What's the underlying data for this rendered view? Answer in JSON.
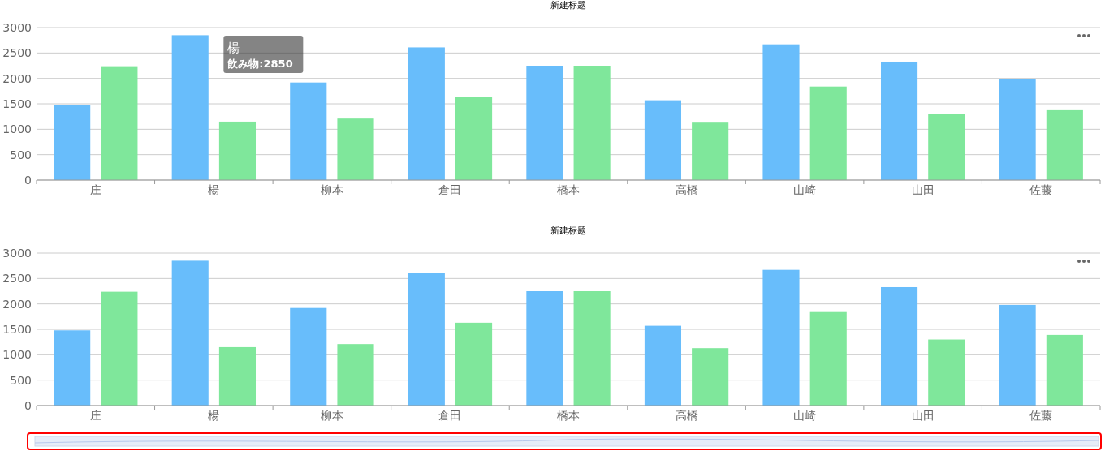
{
  "chart_data": [
    {
      "type": "bar",
      "title": "新建标题",
      "categories": [
        "庄",
        "楊",
        "柳本",
        "倉田",
        "橋本",
        "高橋",
        "山崎",
        "山田",
        "佐藤"
      ],
      "series": [
        {
          "color": "#68bdfb",
          "values": [
            1480,
            2850,
            1920,
            2610,
            2250,
            1570,
            2670,
            2330,
            1980
          ]
        },
        {
          "color": "#7fe79b",
          "values": [
            2240,
            1150,
            1210,
            1630,
            2250,
            1130,
            1840,
            1300,
            1390
          ]
        }
      ],
      "ylim": [
        0,
        3000
      ],
      "yticks": [
        0,
        500,
        1000,
        1500,
        2000,
        2500,
        3000
      ],
      "grid": "y",
      "annotations": [
        "楊",
        "飲み物:2850"
      ]
    },
    {
      "type": "bar",
      "title": "新建标题",
      "categories": [
        "庄",
        "楊",
        "柳本",
        "倉田",
        "橋本",
        "高橋",
        "山崎",
        "山田",
        "佐藤"
      ],
      "series": [
        {
          "color": "#68bdfb",
          "values": [
            1480,
            2850,
            1920,
            2610,
            2250,
            1570,
            2670,
            2330,
            1980
          ]
        },
        {
          "color": "#7fe79b",
          "values": [
            2240,
            1150,
            1210,
            1630,
            2250,
            1130,
            1840,
            1300,
            1390
          ]
        }
      ],
      "ylim": [
        0,
        3000
      ],
      "yticks": [
        0,
        500,
        1000,
        1500,
        2000,
        2500,
        3000
      ],
      "grid": "y"
    }
  ]
}
